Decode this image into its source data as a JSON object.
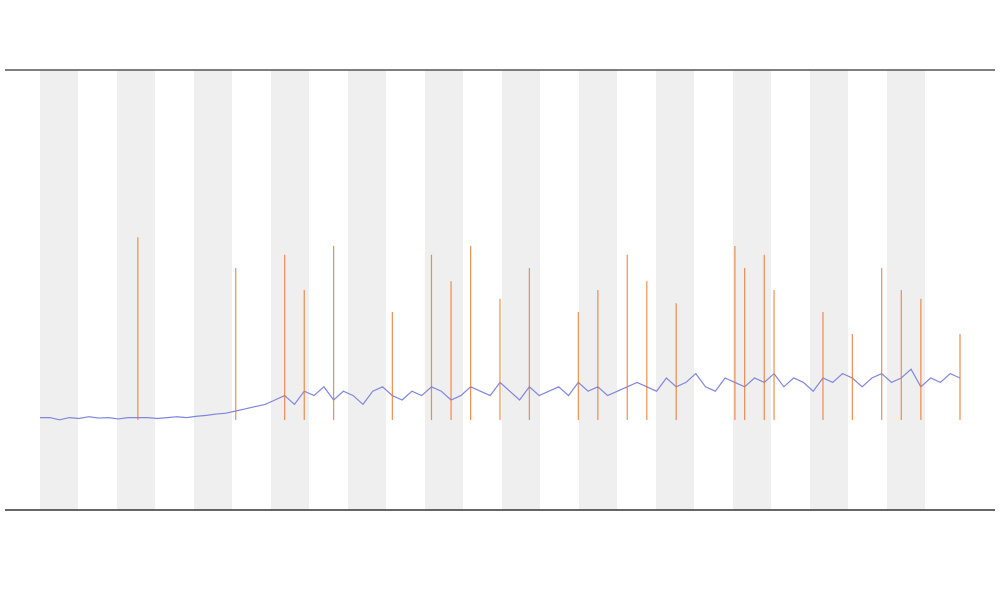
{
  "chart_data": {
    "type": "line",
    "ylim": [
      0,
      100
    ],
    "series": [
      {
        "color": "#7f86e0",
        "values": [
          21,
          21,
          20.5,
          21,
          20.8,
          21.2,
          20.9,
          21,
          20.7,
          21,
          21,
          21,
          20.8,
          21,
          21.2,
          21,
          21.3,
          21.5,
          21.8,
          22,
          22.5,
          23,
          23.5,
          24,
          25,
          26,
          24,
          27,
          26,
          28,
          25,
          27,
          26,
          24,
          27,
          28,
          26,
          25,
          27,
          26,
          28,
          27,
          25,
          26,
          28,
          27,
          26,
          29,
          27,
          25,
          28,
          26,
          27,
          28,
          26,
          29,
          27,
          28,
          26,
          27,
          28,
          29,
          28,
          27,
          30,
          28,
          29,
          31,
          28,
          27,
          30,
          29,
          28,
          30,
          29,
          31,
          28,
          30,
          29,
          27,
          30,
          29,
          31,
          30,
          28,
          30,
          31,
          29,
          30,
          32,
          28,
          30,
          29,
          31,
          30
        ]
      },
      {
        "color": "#e8742a",
        "values": [
          null,
          null,
          null,
          null,
          null,
          null,
          null,
          null,
          null,
          null,
          62,
          null,
          null,
          null,
          null,
          null,
          null,
          null,
          null,
          null,
          55,
          null,
          null,
          null,
          null,
          58,
          null,
          50,
          null,
          null,
          60,
          null,
          null,
          null,
          null,
          null,
          45,
          null,
          null,
          null,
          58,
          null,
          52,
          null,
          60,
          null,
          null,
          48,
          null,
          null,
          55,
          null,
          null,
          null,
          null,
          45,
          null,
          50,
          null,
          null,
          58,
          null,
          52,
          null,
          null,
          47,
          null,
          null,
          null,
          null,
          null,
          60,
          55,
          null,
          58,
          50,
          null,
          null,
          null,
          null,
          45,
          null,
          null,
          40,
          null,
          null,
          55,
          null,
          50,
          null,
          48,
          null,
          null,
          null,
          40,
          null
        ]
      }
    ]
  }
}
